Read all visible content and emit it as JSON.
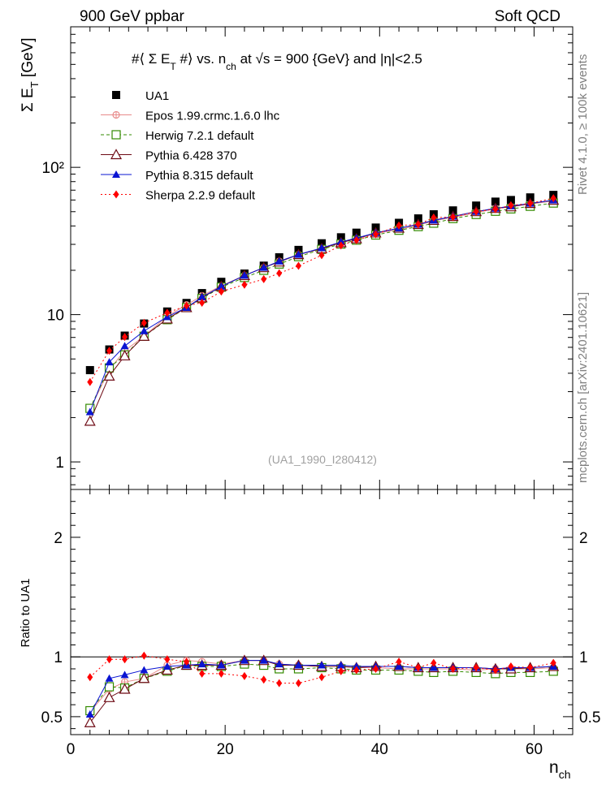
{
  "header": {
    "left": "900 GeV ppbar",
    "right": "Soft QCD"
  },
  "side_labels": {
    "top": "Rivet 4.1.0, ≥ 100k events",
    "bottom": "mcplots.cern.ch [arXiv:2401.10621]"
  },
  "chart_data": {
    "type": "scatter",
    "title_parts": {
      "prefix": "#⟨ Σ E",
      "sub1": "T",
      "mid": " #⟩ vs. n",
      "sub2": "ch",
      "at": " at ",
      "sqrt": "√s",
      "suffix": " = 900 {GeV}  and |η|<2.5"
    },
    "ylabel_main": "Σ E",
    "ylabel_main_sub": "T",
    "ylabel_main_unit": " [GeV]",
    "ylabel_ratio": "Ratio to UA1",
    "xlabel": "n",
    "xlabel_sub": "ch",
    "watermark": "(UA1_1990_I280412)",
    "xlim": [
      0,
      65
    ],
    "ylim_main": [
      0.65,
      900
    ],
    "ylim_ratio": [
      0.35,
      2.4
    ],
    "yscale_main": "log",
    "x_ticks": [
      "0",
      "20",
      "40",
      "60"
    ],
    "y_ticks_main": [
      "1",
      "10",
      "10²"
    ],
    "y_ticks_ratio": [
      "0.5",
      "1",
      "2"
    ],
    "x": [
      2.5,
      5,
      7,
      9.5,
      12.5,
      15,
      17,
      19.5,
      22.5,
      25,
      27,
      29.5,
      32.5,
      35,
      37,
      39.5,
      42.5,
      45,
      47,
      49.5,
      52.5,
      55,
      57,
      59.5,
      62.5
    ],
    "series": [
      {
        "name": "UA1",
        "color": "#000000",
        "marker": "square-filled",
        "line": "none",
        "values": [
          4.2,
          5.8,
          7.2,
          8.7,
          10.5,
          12.0,
          14.0,
          16.7,
          19.0,
          21.5,
          24.5,
          27.5,
          30.5,
          33.5,
          36.0,
          39.0,
          42.0,
          45.0,
          48.0,
          51.0,
          55.0,
          58.5,
          60.0,
          62.5,
          65.0
        ]
      },
      {
        "name": "Epos 1.99.crmc.1.6.0 lhc",
        "color": "#e88a8a",
        "marker": "circle-cross-open",
        "line": "solid",
        "ratio": [
          0.54,
          0.73,
          0.79,
          0.82,
          0.93,
          0.97,
          0.96,
          0.94,
          0.97,
          0.97,
          0.94,
          0.93,
          0.92,
          0.92,
          0.91,
          0.91,
          0.9,
          0.9,
          0.9,
          0.9,
          0.89,
          0.9,
          0.9,
          0.9,
          0.91
        ]
      },
      {
        "name": "Herwig 7.2.1 default",
        "color": "#338a00",
        "marker": "square-open",
        "line": "dashed",
        "ratio": [
          0.55,
          0.75,
          0.74,
          0.82,
          0.88,
          0.93,
          0.92,
          0.92,
          0.94,
          0.93,
          0.9,
          0.9,
          0.91,
          0.9,
          0.89,
          0.89,
          0.89,
          0.88,
          0.87,
          0.88,
          0.87,
          0.86,
          0.87,
          0.87,
          0.88
        ]
      },
      {
        "name": "Pythia 6.428 370",
        "color": "#6e0a14",
        "marker": "triangle-open",
        "line": "solid",
        "ratio": [
          0.45,
          0.66,
          0.73,
          0.82,
          0.89,
          0.93,
          0.93,
          0.93,
          0.97,
          0.97,
          0.93,
          0.93,
          0.92,
          0.92,
          0.91,
          0.92,
          0.92,
          0.91,
          0.91,
          0.91,
          0.91,
          0.9,
          0.9,
          0.91,
          0.92
        ]
      },
      {
        "name": "Pythia 8.315 default",
        "color": "#0a14d2",
        "marker": "triangle-filled",
        "line": "solid",
        "ratio": [
          0.52,
          0.82,
          0.85,
          0.89,
          0.92,
          0.93,
          0.94,
          0.93,
          0.97,
          0.97,
          0.94,
          0.93,
          0.93,
          0.93,
          0.92,
          0.92,
          0.92,
          0.91,
          0.91,
          0.91,
          0.91,
          0.9,
          0.91,
          0.91,
          0.92
        ]
      },
      {
        "name": "Sherpa 2.2.9 default",
        "color": "#ff0000",
        "marker": "diamond-filled",
        "line": "dotted",
        "ratio": [
          0.83,
          0.98,
          0.98,
          1.01,
          0.98,
          0.96,
          0.86,
          0.86,
          0.84,
          0.81,
          0.78,
          0.78,
          0.83,
          0.88,
          0.89,
          0.9,
          0.96,
          0.91,
          0.95,
          0.9,
          0.91,
          0.89,
          0.92,
          0.91,
          0.95
        ]
      }
    ]
  }
}
